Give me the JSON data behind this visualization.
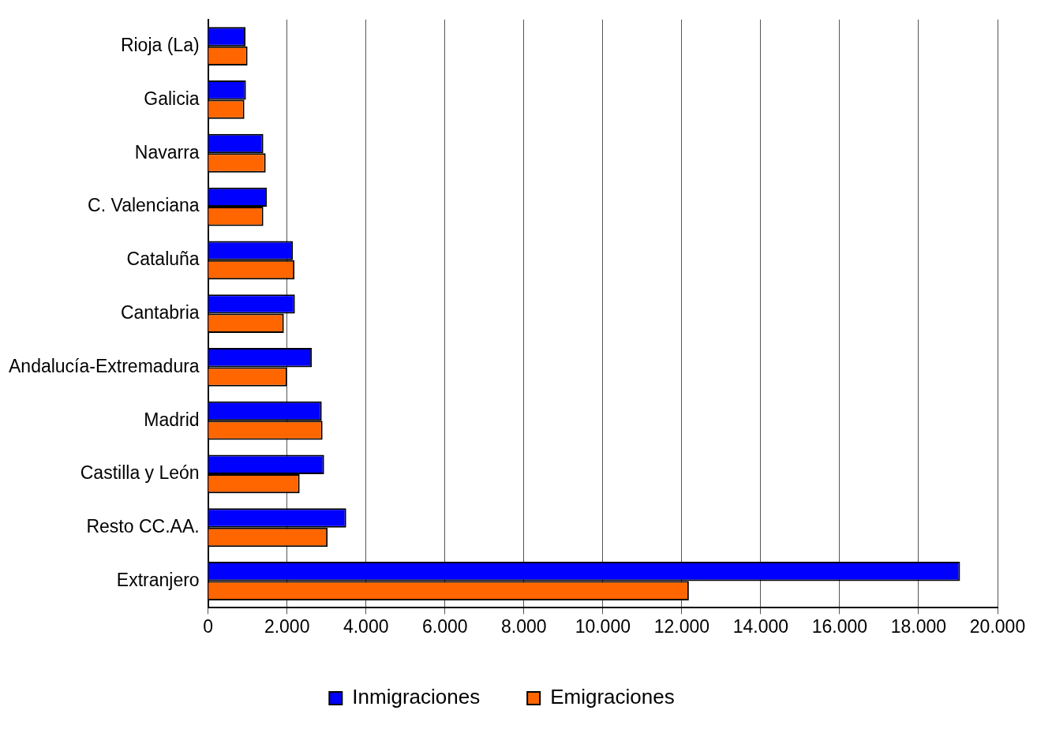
{
  "chart_data": {
    "type": "bar",
    "orientation": "horizontal",
    "categories": [
      "Rioja (La)",
      "Galicia",
      "Navarra",
      "C. Valenciana",
      "Cataluña",
      "Cantabria",
      "Andalucía-Extremadura",
      "Madrid",
      "Castilla y León",
      "Resto CC.AA.",
      "Extranjero"
    ],
    "series": [
      {
        "name": "Inmigraciones",
        "color": "#0000ff",
        "values": [
          950,
          960,
          1400,
          1490,
          2150,
          2200,
          2630,
          2880,
          2940,
          3500,
          19050
        ]
      },
      {
        "name": "Emigraciones",
        "color": "#ff6600",
        "values": [
          1000,
          920,
          1460,
          1400,
          2190,
          1920,
          2000,
          2900,
          2320,
          3030,
          12180
        ]
      }
    ],
    "xlim": [
      0,
      20000
    ],
    "xticks": [
      0,
      {
        "value": 2000,
        "label": "2.000"
      },
      {
        "value": 4000,
        "label": "4.000"
      },
      {
        "value": 6000,
        "label": "6.000"
      },
      {
        "value": 8000,
        "label": "8.000"
      },
      {
        "value": 10000,
        "label": "10.000"
      },
      {
        "value": 12000,
        "label": "12.000"
      },
      {
        "value": 14000,
        "label": "14.000"
      },
      {
        "value": 16000,
        "label": "16.000"
      },
      {
        "value": 18000,
        "label": "18.000"
      },
      {
        "value": 20000,
        "label": "20.000"
      }
    ],
    "grid": "x",
    "legend": "bottom"
  }
}
